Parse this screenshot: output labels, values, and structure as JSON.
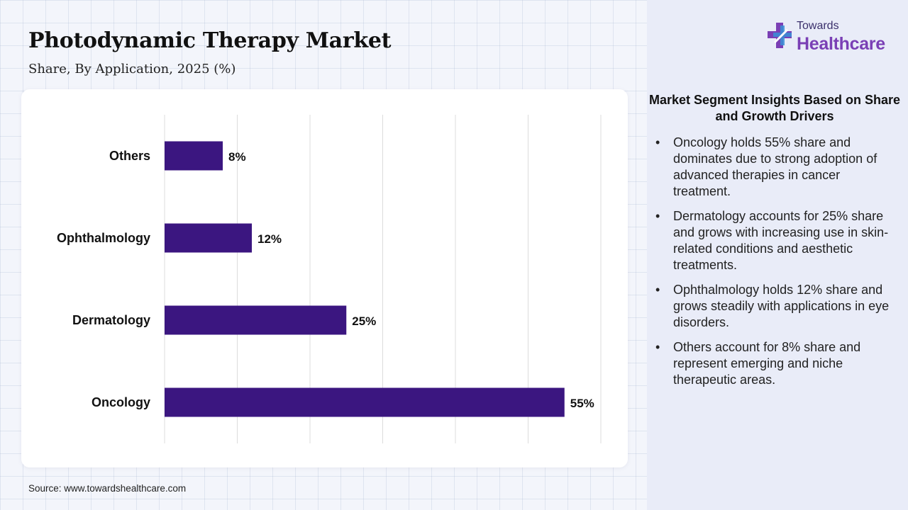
{
  "header": {
    "title": "Photodynamic Therapy Market",
    "subtitle": "Share, By Application, 2025 (%)"
  },
  "logo": {
    "top_text": "Towards",
    "main_text": "Healthcare",
    "icon": "plus-cross-icon"
  },
  "footer": {
    "source": "Source: www.towardshealthcare.com"
  },
  "insights": {
    "title": "Market Segment Insights Based on Share and Growth Drivers",
    "items": [
      "Oncology holds 55% share and dominates due to strong adoption of advanced therapies in cancer treatment.",
      "Dermatology accounts for 25% share and grows with increasing use in skin-related conditions and aesthetic treatments.",
      "Ophthalmology holds 12% share and grows steadily with applications in eye disorders.",
      "Others account for 8% share and represent emerging and niche therapeutic areas."
    ]
  },
  "colors": {
    "bar": "#3b1680",
    "accent": "#7a3fb5"
  },
  "chart_data": {
    "type": "bar",
    "orientation": "horizontal",
    "categories": [
      "Others",
      "Ophthalmology",
      "Dermatology",
      "Oncology"
    ],
    "values": [
      8,
      12,
      25,
      55
    ],
    "data_labels": [
      "8%",
      "12%",
      "25%",
      "55%"
    ],
    "xlim": [
      0,
      60
    ],
    "grid": true,
    "title": "Photodynamic Therapy Market",
    "subtitle": "Share, By Application, 2025 (%)"
  }
}
